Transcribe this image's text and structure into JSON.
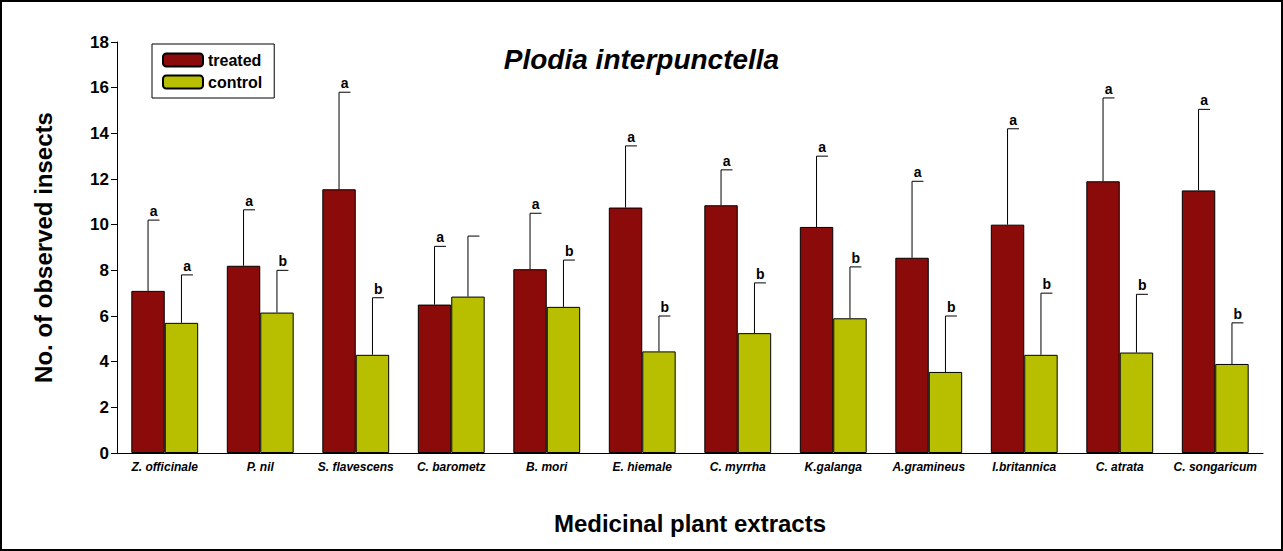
{
  "chart_data": {
    "type": "bar",
    "title": "Plodia interpunctella",
    "x_label": "Medicinal plant extracts",
    "y_label": "No. of observed insects",
    "categories": [
      "Z. officinale",
      "P. nil",
      "S. flavescens",
      "C. barometz",
      "B. mori",
      "E. hiemale",
      "C. myrrha",
      "K.galanga",
      "A.gramineus",
      "I.britannica",
      "C. atrata",
      "C. songaricum"
    ],
    "series": [
      {
        "name": "treated",
        "color": "#8b0a0a",
        "values": [
          7.1,
          8.2,
          11.55,
          6.5,
          8.05,
          10.75,
          10.85,
          9.9,
          8.55,
          10.0,
          11.9,
          11.5
        ],
        "errors": [
          3.1,
          2.45,
          4.25,
          2.55,
          2.45,
          2.7,
          1.55,
          3.1,
          3.35,
          4.2,
          3.65,
          3.55
        ],
        "letters": [
          "a",
          "a",
          "a",
          "a",
          "a",
          "a",
          "a",
          "a",
          "a",
          "a",
          "a",
          "a"
        ]
      },
      {
        "name": "control",
        "color": "#b8bf00",
        "values": [
          5.7,
          6.15,
          4.3,
          6.85,
          6.4,
          4.45,
          5.25,
          5.9,
          3.55,
          4.3,
          4.4,
          3.9
        ],
        "errors": [
          2.1,
          1.85,
          2.5,
          2.65,
          2.05,
          1.55,
          2.2,
          2.25,
          2.45,
          2.7,
          2.55,
          1.8
        ],
        "letters": [
          "a",
          "b",
          "b",
          null,
          "b",
          "b",
          "b",
          "b",
          "b",
          "b",
          "b",
          "b"
        ]
      }
    ],
    "ylim": [
      0,
      18
    ],
    "yticks": [
      0,
      2,
      4,
      6,
      8,
      10,
      12,
      14,
      16,
      18
    ],
    "legend": "upper left",
    "grid": false
  }
}
